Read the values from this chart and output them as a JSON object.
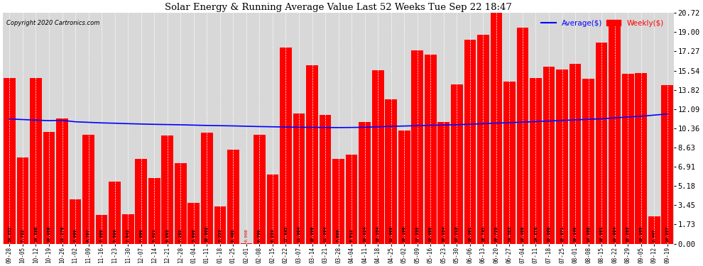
{
  "title": "Solar Energy & Running Average Value Last 52 Weeks Tue Sep 22 18:47",
  "copyright": "Copyright 2020 Cartronics.com",
  "bar_color": "#ff0000",
  "avg_color": "#0000ff",
  "background_color": "#ffffff",
  "plot_bg_color": "#d8d8d8",
  "grid_color": "#ffffff",
  "ylabel_right_values": [
    0.0,
    1.73,
    3.45,
    5.18,
    6.91,
    8.63,
    10.36,
    12.09,
    13.82,
    15.54,
    17.27,
    19.0,
    20.72
  ],
  "categories": [
    "09-28",
    "10-05",
    "10-12",
    "10-19",
    "10-26",
    "11-02",
    "11-09",
    "11-16",
    "11-23",
    "11-30",
    "12-07",
    "12-14",
    "12-21",
    "12-28",
    "01-04",
    "01-11",
    "01-18",
    "01-25",
    "02-01",
    "02-08",
    "02-15",
    "02-22",
    "03-07",
    "03-14",
    "03-21",
    "03-28",
    "04-04",
    "04-11",
    "04-18",
    "04-25",
    "05-02",
    "05-09",
    "05-16",
    "05-23",
    "05-30",
    "06-06",
    "06-13",
    "06-20",
    "06-27",
    "07-04",
    "07-11",
    "07-18",
    "07-25",
    "08-01",
    "08-08",
    "08-15",
    "08-22",
    "08-29",
    "09-05",
    "09-12",
    "09-19"
  ],
  "weekly_values": [
    14.852,
    7.722,
    14.896,
    10.058,
    11.276,
    3.989,
    9.787,
    2.608,
    5.599,
    2.642,
    7.606,
    5.921,
    9.693,
    7.262,
    3.69,
    10.002,
    3.333,
    8.465,
    0.008,
    9.799,
    6.234,
    17.645,
    11.664,
    15.996,
    11.594,
    7.608,
    8.012,
    10.924,
    15.554,
    12.988,
    10.196,
    17.335,
    16.988,
    10.934,
    14.313,
    18.301,
    18.745,
    20.723,
    14.583,
    19.406,
    14.87,
    15.886,
    15.671,
    16.14,
    14.808,
    18.081,
    19.864,
    15.283,
    15.355,
    2.447,
    14.257
  ],
  "avg_values": [
    11.2,
    11.15,
    11.1,
    11.05,
    11.08,
    10.95,
    10.9,
    10.85,
    10.82,
    10.78,
    10.75,
    10.72,
    10.7,
    10.68,
    10.65,
    10.62,
    10.6,
    10.58,
    10.55,
    10.52,
    10.5,
    10.48,
    10.46,
    10.45,
    10.44,
    10.43,
    10.44,
    10.46,
    10.5,
    10.54,
    10.57,
    10.6,
    10.63,
    10.66,
    10.69,
    10.73,
    10.78,
    10.83,
    10.87,
    10.92,
    10.97,
    11.02,
    11.07,
    11.12,
    11.17,
    11.22,
    11.3,
    11.38,
    11.45,
    11.55,
    11.65
  ],
  "ylim": [
    0.0,
    20.72
  ],
  "figsize": [
    9.9,
    3.75
  ],
  "dpi": 100
}
